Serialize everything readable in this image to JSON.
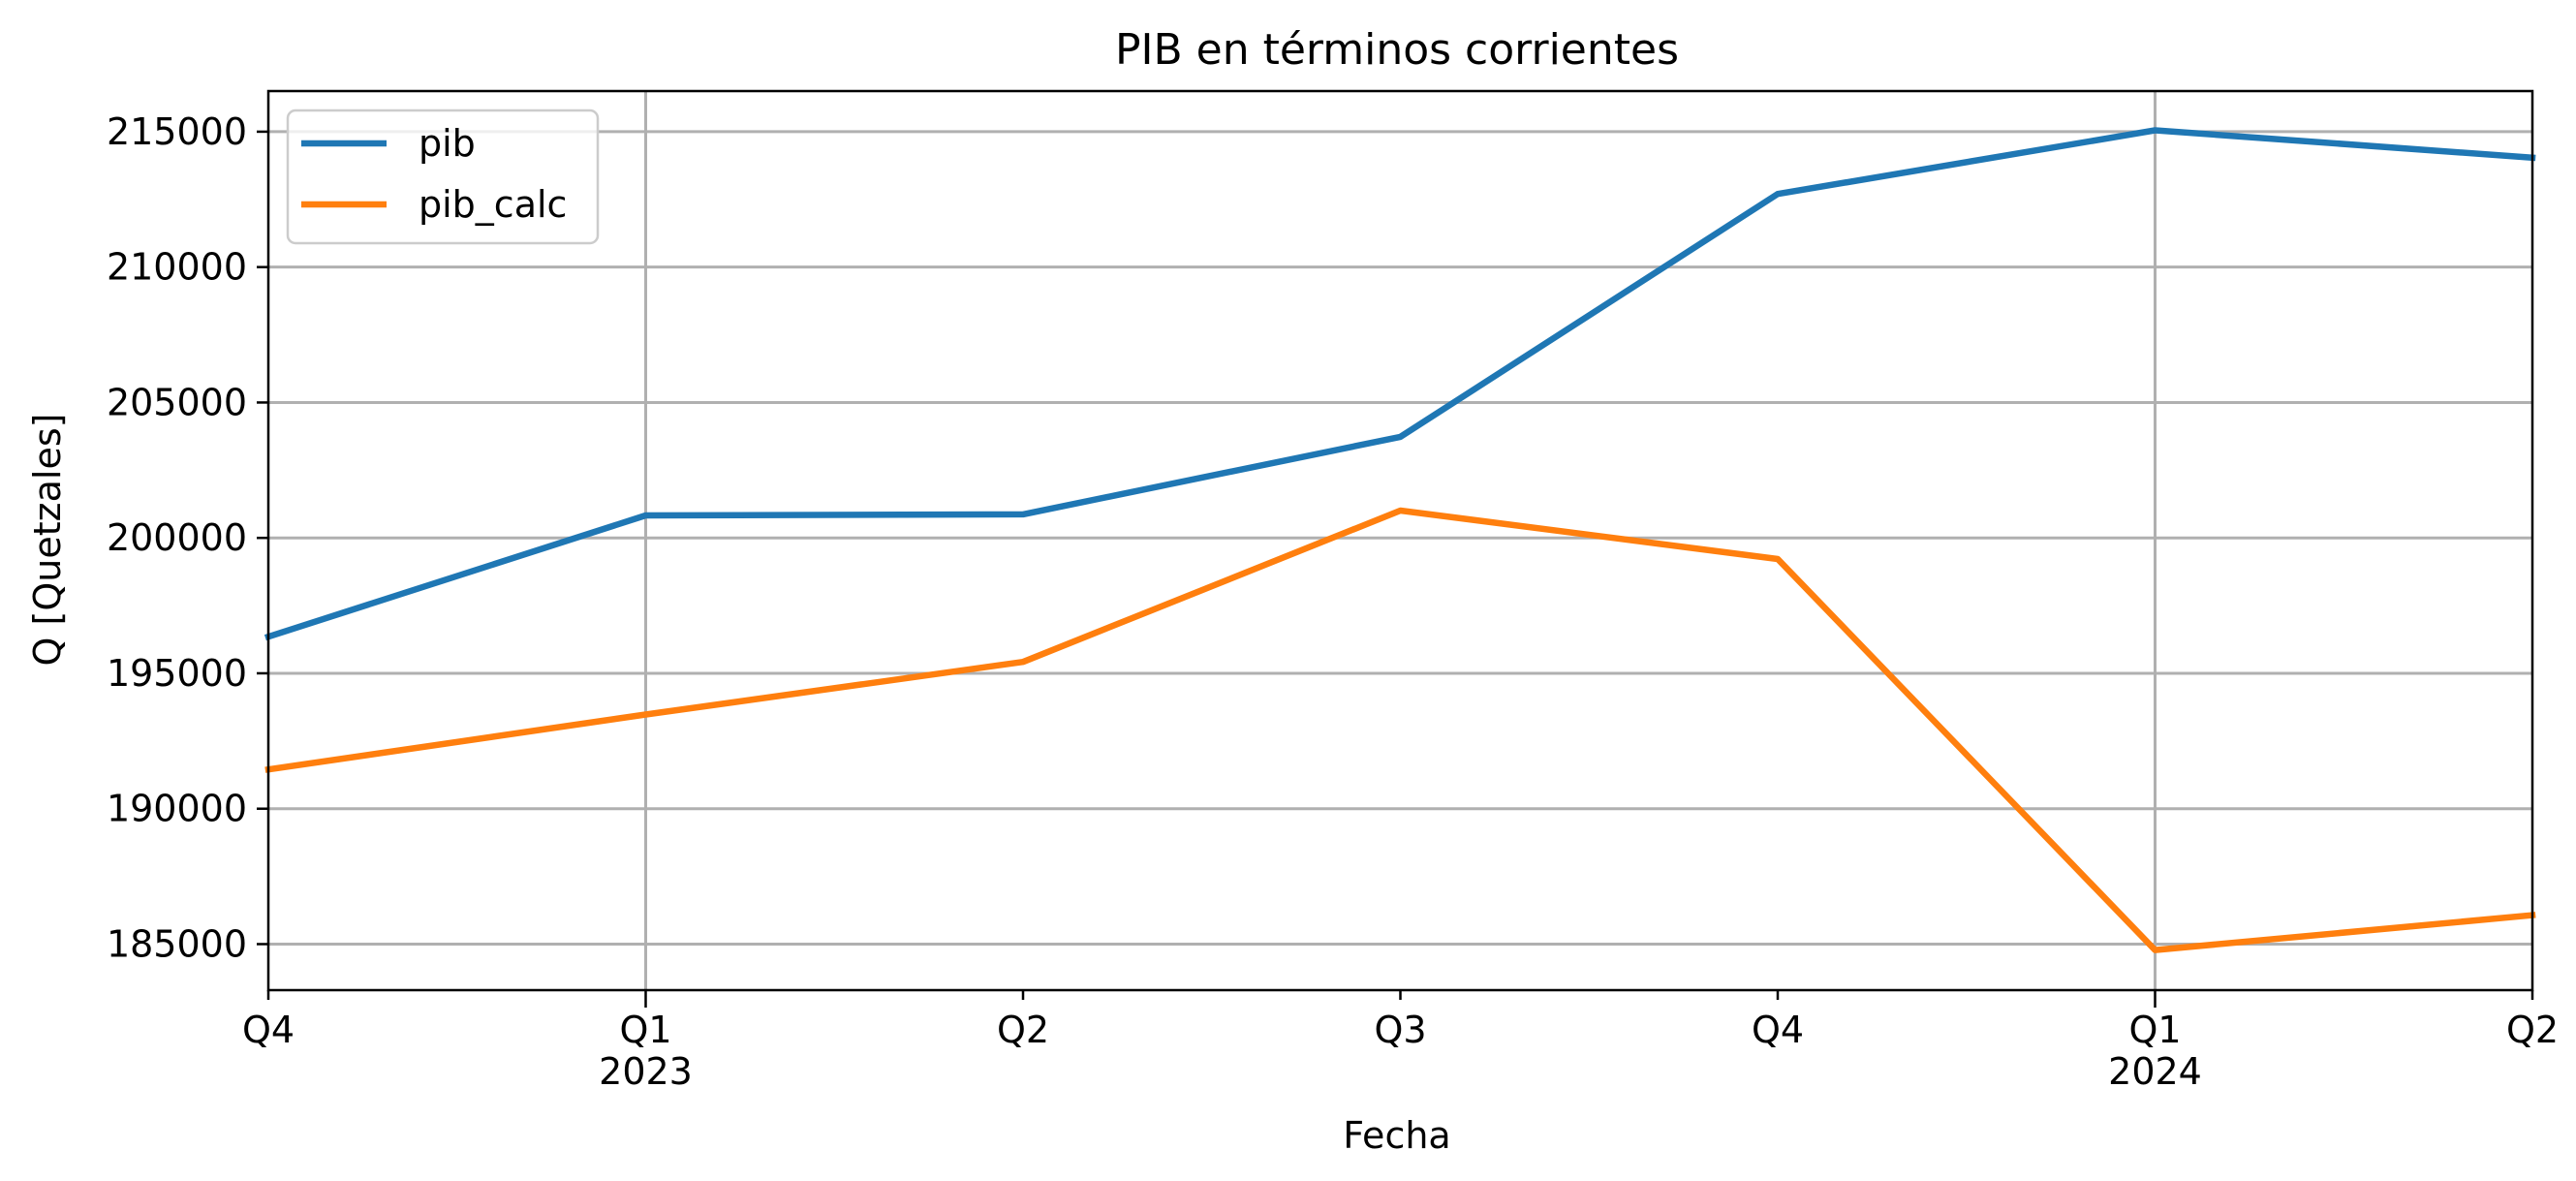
{
  "chart_data": {
    "type": "line",
    "title": "PIB en términos corrientes",
    "xlabel": "Fecha",
    "ylabel": "Q [Quetzales]",
    "x": [
      "2022-Q4",
      "2023-Q1",
      "2023-Q2",
      "2023-Q3",
      "2023-Q4",
      "2024-Q1",
      "2024-Q2"
    ],
    "x_tick_labels": [
      {
        "quarter": "Q4",
        "year": ""
      },
      {
        "quarter": "Q1",
        "year": "2023"
      },
      {
        "quarter": "Q2",
        "year": ""
      },
      {
        "quarter": "Q3",
        "year": ""
      },
      {
        "quarter": "Q4",
        "year": ""
      },
      {
        "quarter": "Q1",
        "year": "2024"
      },
      {
        "quarter": "Q2",
        "year": ""
      }
    ],
    "ylim": [
      183300,
      216500
    ],
    "yticks": [
      185000,
      190000,
      195000,
      200000,
      205000,
      210000,
      215000
    ],
    "ytick_labels": [
      "185000",
      "190000",
      "195000",
      "200000",
      "205000",
      "210000",
      "215000"
    ],
    "grid": true,
    "legend_position": "top-left",
    "series": [
      {
        "name": "pib",
        "color": "#1f77b4",
        "values": [
          196350,
          200830,
          200870,
          203730,
          212700,
          215050,
          214040
        ]
      },
      {
        "name": "pib_calc",
        "color": "#ff7f0e",
        "values": [
          191450,
          193480,
          195420,
          201010,
          199220,
          184780,
          186070
        ]
      }
    ]
  }
}
